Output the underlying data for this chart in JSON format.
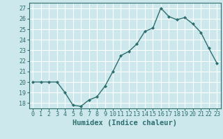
{
  "x": [
    0,
    1,
    2,
    3,
    4,
    5,
    6,
    7,
    8,
    9,
    10,
    11,
    12,
    13,
    14,
    15,
    16,
    17,
    18,
    19,
    20,
    21,
    22,
    23
  ],
  "y": [
    20.0,
    20.0,
    20.0,
    20.0,
    19.0,
    17.8,
    17.7,
    18.3,
    18.6,
    19.6,
    21.0,
    22.5,
    22.9,
    23.6,
    24.8,
    25.1,
    27.0,
    26.2,
    25.9,
    26.1,
    25.5,
    24.7,
    23.2,
    21.8
  ],
  "line_color": "#2d6e6e",
  "marker": "D",
  "marker_size": 2,
  "bg_color": "#cce8ec",
  "grid_color": "#ffffff",
  "xlabel": "Humidex (Indice chaleur)",
  "ylim": [
    17.5,
    27.5
  ],
  "xlim": [
    -0.5,
    23.5
  ],
  "yticks": [
    18,
    19,
    20,
    21,
    22,
    23,
    24,
    25,
    26,
    27
  ],
  "xticks": [
    0,
    1,
    2,
    3,
    4,
    5,
    6,
    7,
    8,
    9,
    10,
    11,
    12,
    13,
    14,
    15,
    16,
    17,
    18,
    19,
    20,
    21,
    22,
    23
  ],
  "tick_label_color": "#2d6e6e",
  "label_color": "#2d6e6e",
  "tick_fontsize": 6,
  "xlabel_fontsize": 7.5,
  "linewidth": 1.0
}
